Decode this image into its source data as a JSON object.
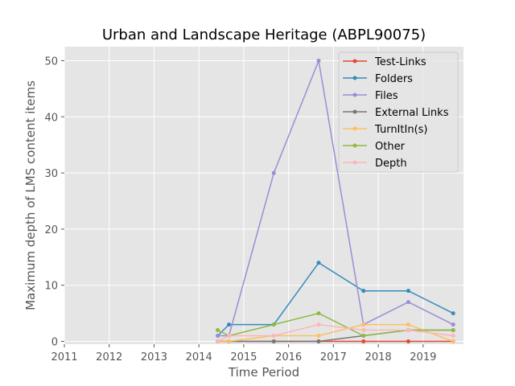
{
  "chart_data": {
    "type": "line",
    "title": "Urban and Landscape Heritage (ABPL90075)",
    "xlabel": "Time Period",
    "ylabel": "Maximum depth of LMS content items",
    "xlim": [
      2011,
      2019.9
    ],
    "ylim": [
      -0.5,
      52.5
    ],
    "xticks": [
      2011,
      2012,
      2013,
      2014,
      2015,
      2016,
      2017,
      2018,
      2019
    ],
    "yticks": [
      0,
      10,
      20,
      30,
      40,
      50
    ],
    "grid": true,
    "legend_position": "top-right",
    "x": [
      2014.42,
      2014.67,
      2015.67,
      2016.67,
      2017.67,
      2018.67,
      2019.67
    ],
    "series": [
      {
        "name": "Test-Links",
        "color": "#E24A33",
        "values": [
          0,
          0,
          0,
          0,
          0,
          0,
          0
        ]
      },
      {
        "name": "Folders",
        "color": "#348ABD",
        "values": [
          1,
          3,
          3,
          14,
          9,
          9,
          5
        ]
      },
      {
        "name": "Files",
        "color": "#988ED5",
        "values": [
          1,
          1,
          30,
          50,
          3,
          7,
          3
        ]
      },
      {
        "name": "External Links",
        "color": "#777777",
        "values": [
          0,
          0,
          0,
          0,
          1,
          2,
          2
        ]
      },
      {
        "name": "TurnItIn(s)",
        "color": "#FBC15E",
        "values": [
          0,
          0,
          1,
          1,
          3,
          3,
          0
        ]
      },
      {
        "name": "Other",
        "color": "#8EBA42",
        "values": [
          2,
          1,
          3,
          5,
          1,
          2,
          2
        ]
      },
      {
        "name": "Depth",
        "color": "#FFB5B8",
        "values": [
          0,
          1,
          1,
          3,
          2,
          2,
          1
        ]
      }
    ]
  }
}
